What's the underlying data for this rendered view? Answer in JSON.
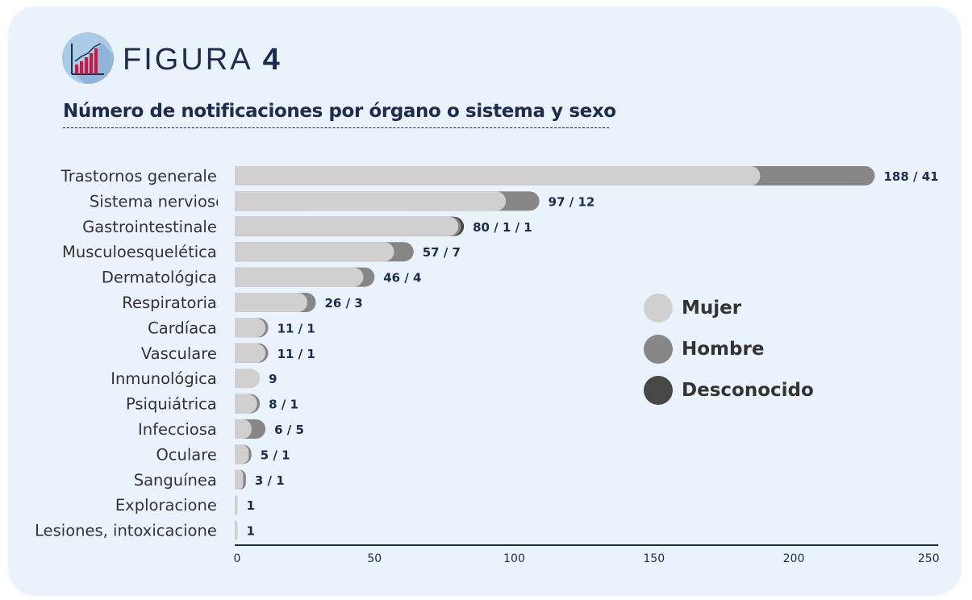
{
  "header": {
    "figure_word": "FIGURA",
    "figure_number": "4",
    "subtitle": "Número de notificaciones por órgano o sistema y sexo",
    "icon": "bar-chart-icon"
  },
  "colors": {
    "Mujer": "#d0d0d0",
    "Hombre": "#878787",
    "Desconocido": "#474747",
    "axis": "#1d2b4f",
    "card": "#eaf2fb"
  },
  "chart_data": {
    "type": "bar",
    "orientation": "horizontal",
    "stacked": true,
    "title": "Número de notificaciones por órgano o sistema y sexo",
    "categories": [
      "Trastornos generales",
      "Sistema nervioso",
      "Gastrointestinales",
      "Musculoesqueléticas",
      "Dermatológicas",
      "Respiratorias",
      "Cardíacas",
      "Vasculares",
      "Inmunológicas",
      "Psiquiátricas",
      "Infecciosas",
      "Oculares",
      "Sanguíneas",
      "Exploraciones",
      "Lesiones, intoxicaciones"
    ],
    "series": [
      {
        "name": "Mujer",
        "values": [
          188,
          97,
          80,
          57,
          46,
          26,
          11,
          11,
          9,
          8,
          6,
          5,
          3,
          1,
          1
        ]
      },
      {
        "name": "Hombre",
        "values": [
          41,
          12,
          1,
          7,
          4,
          3,
          1,
          1,
          0,
          1,
          5,
          1,
          1,
          0,
          0
        ]
      },
      {
        "name": "Desconocido",
        "values": [
          0,
          0,
          1,
          0,
          0,
          0,
          0,
          0,
          0,
          0,
          0,
          0,
          0,
          0,
          0
        ]
      }
    ],
    "data_labels": [
      "188 / 41",
      "97 / 12",
      "80 / 1 / 1",
      "57 / 7",
      "46 / 4",
      "26 / 3",
      "11 / 1",
      "11 / 1",
      "9",
      "8 / 1",
      "6 / 5",
      "5 / 1",
      "3 / 1",
      "1",
      "1"
    ],
    "xlim": [
      0,
      250
    ],
    "xticks": [
      0,
      50,
      100,
      150,
      200,
      250
    ],
    "xlabel": "",
    "ylabel": "",
    "grid": false,
    "legend_position": "right-center",
    "legend": [
      "Mujer",
      "Hombre",
      "Desconocido"
    ]
  }
}
